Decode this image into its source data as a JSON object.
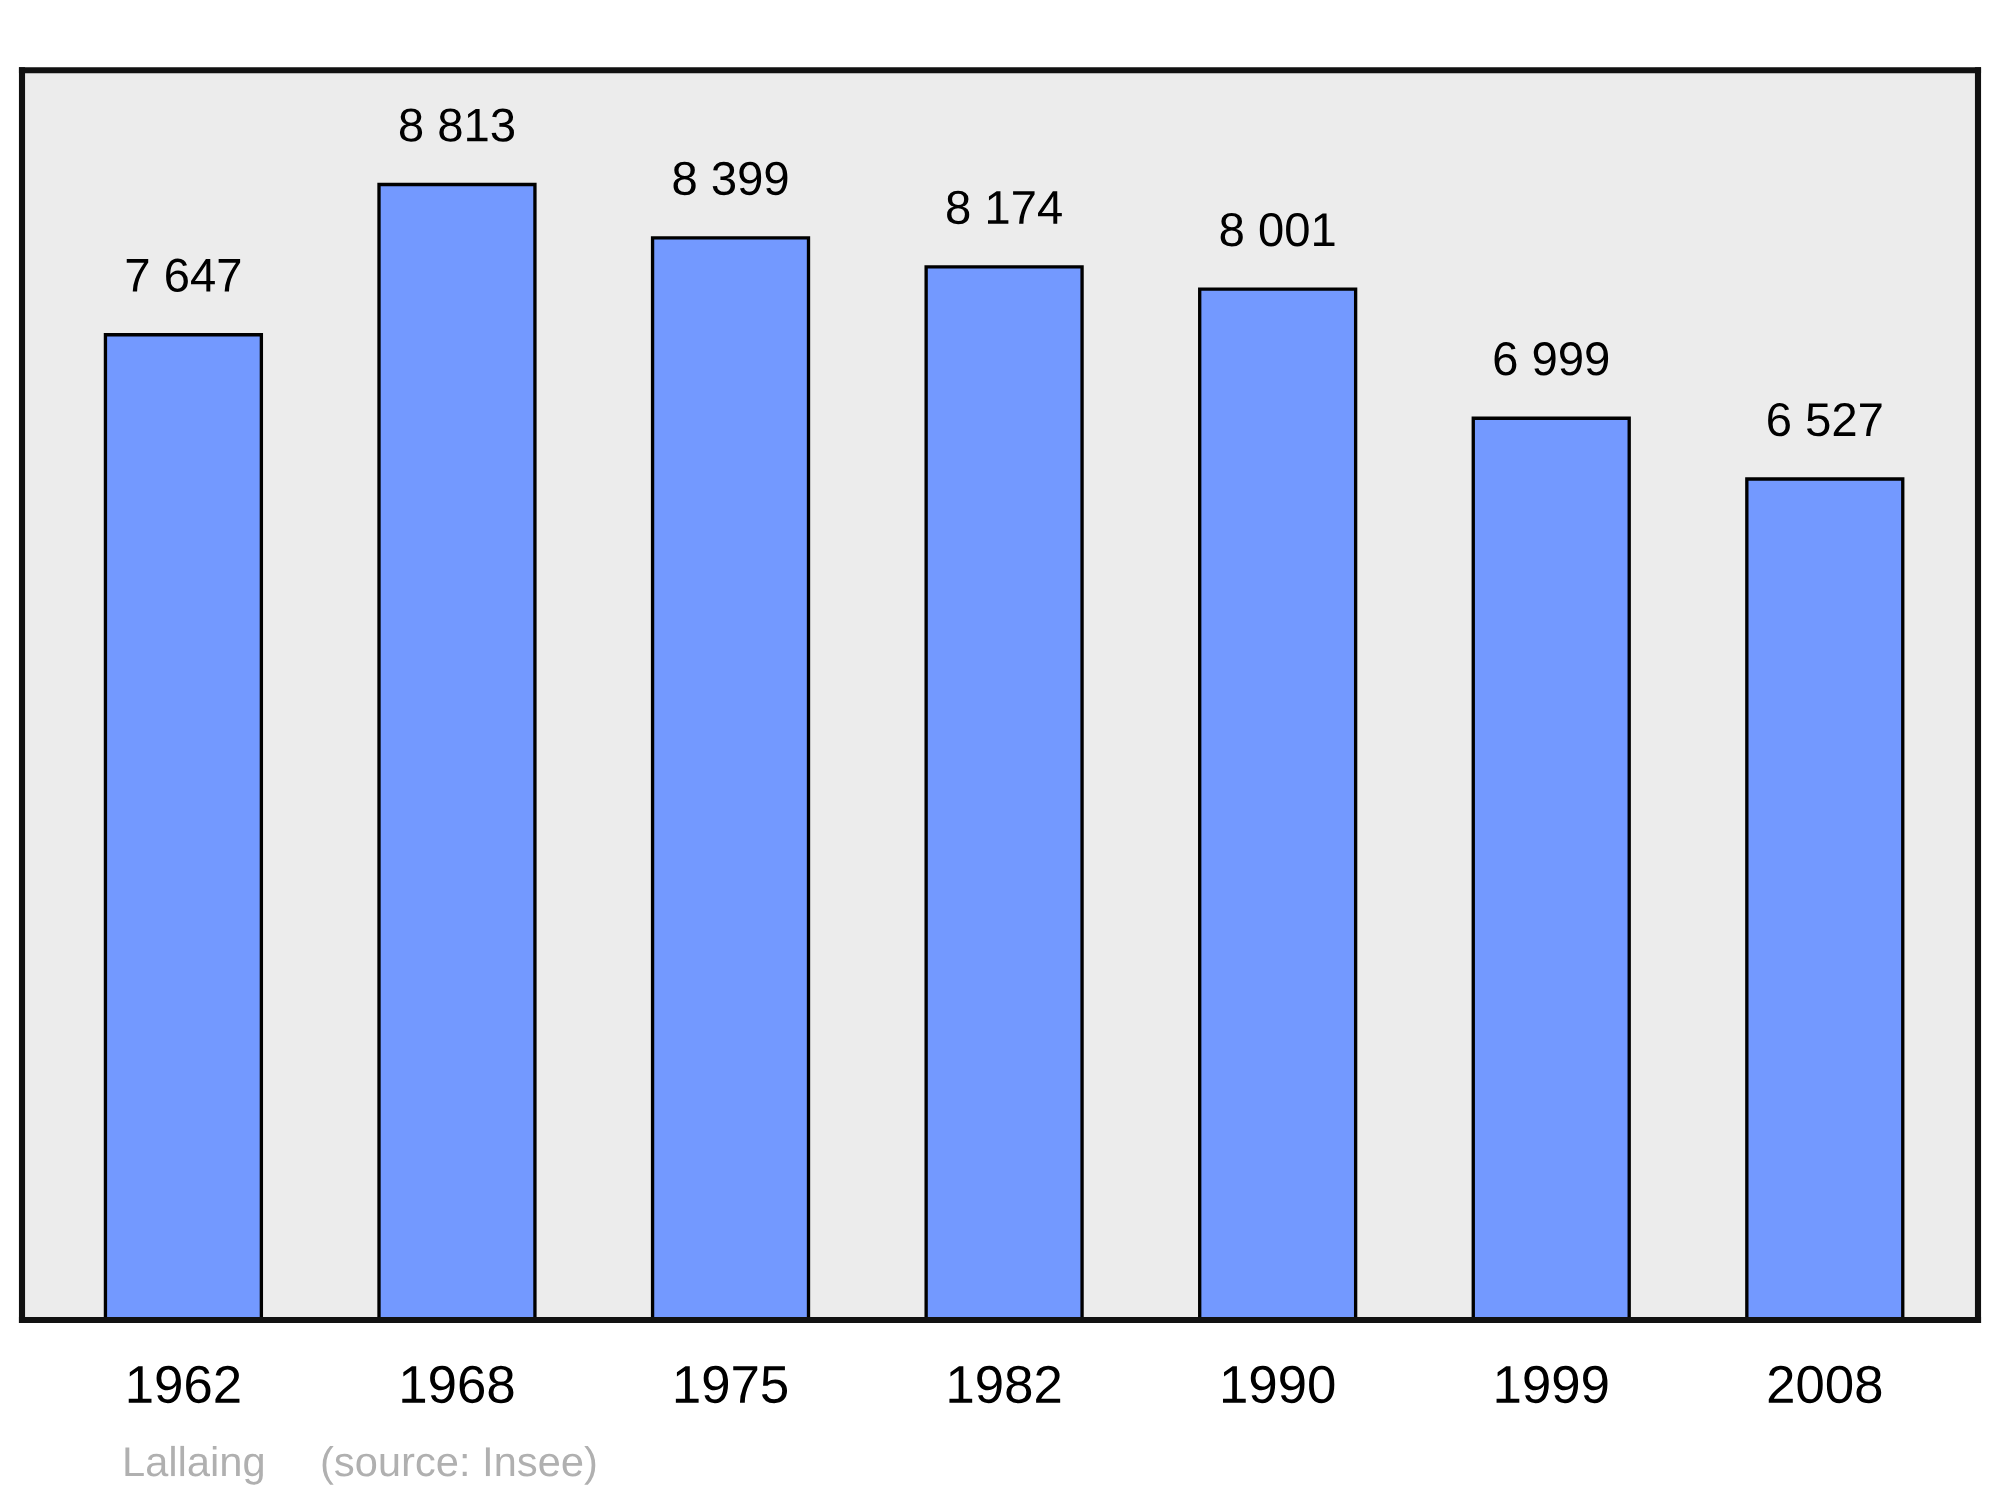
{
  "chart_data": {
    "type": "bar",
    "categories": [
      "1962",
      "1968",
      "1975",
      "1982",
      "1990",
      "1999",
      "2008"
    ],
    "values": [
      7647,
      8813,
      8399,
      8174,
      8001,
      6999,
      6527
    ],
    "value_labels": [
      "7 647",
      "8 813",
      "8 399",
      "8 174",
      "8 001",
      "6 999",
      "6 527"
    ],
    "color": "#7399ff",
    "ylim": [
      0,
      9700
    ],
    "tick_labels": "x",
    "grid": false,
    "legend": false,
    "annotations": [
      "Lallaing",
      "(source: Insee)"
    ]
  }
}
